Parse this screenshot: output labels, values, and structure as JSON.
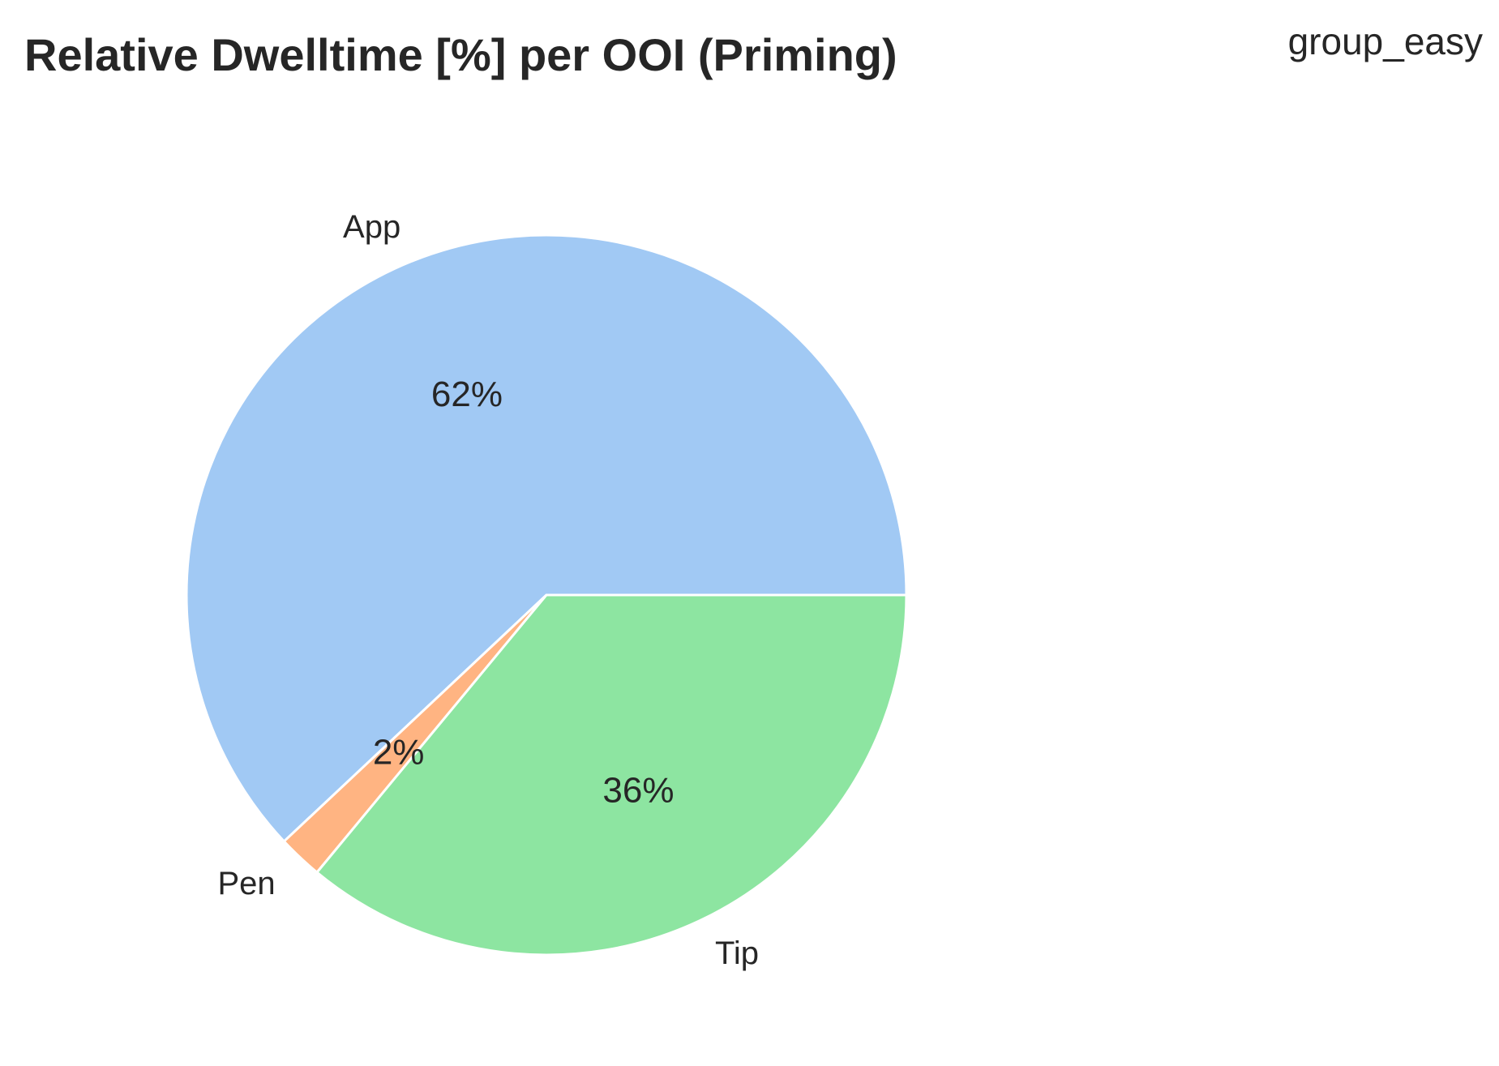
{
  "chart_data": {
    "type": "pie",
    "title": "Relative Dwelltime [%] per OOI (Priming)",
    "group_label": "group_easy",
    "start_angle_deg": 0,
    "direction": "counterclockwise",
    "edge_color": "#ffffff",
    "slices": [
      {
        "label": "App",
        "value": 62,
        "pct_text": "62%",
        "color": "#a1c9f4"
      },
      {
        "label": "Pen",
        "value": 2,
        "pct_text": "2%",
        "color": "#ffb482"
      },
      {
        "label": "Tip",
        "value": 36,
        "pct_text": "36%",
        "color": "#8de5a1"
      }
    ]
  }
}
